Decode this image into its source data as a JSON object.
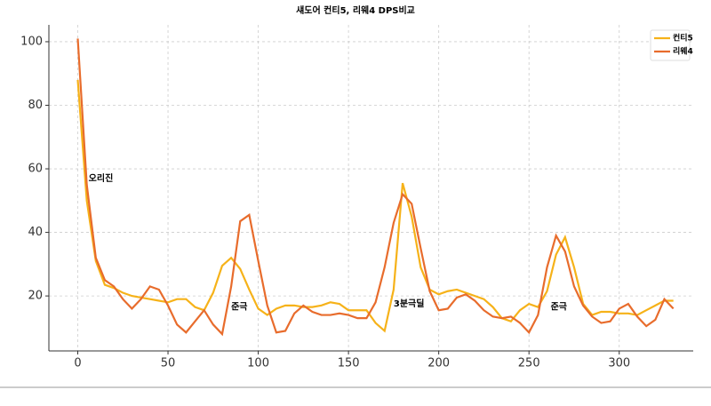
{
  "chart_data": {
    "type": "line",
    "title": "섀도어 컨티5, 리웨4 DPS비교",
    "x": [
      0,
      5,
      10,
      15,
      20,
      25,
      30,
      35,
      40,
      45,
      50,
      55,
      60,
      65,
      70,
      75,
      80,
      85,
      90,
      95,
      100,
      105,
      110,
      115,
      120,
      125,
      130,
      135,
      140,
      145,
      150,
      155,
      160,
      165,
      170,
      175,
      180,
      185,
      190,
      195,
      200,
      205,
      210,
      215,
      220,
      225,
      230,
      235,
      240,
      245,
      250,
      255,
      260,
      265,
      270,
      275,
      280,
      285,
      290,
      295,
      300,
      305,
      310,
      315,
      320,
      325,
      330
    ],
    "series": [
      {
        "name": "컨티5",
        "color": "#f6b219",
        "values": [
          88,
          50,
          31,
          23.5,
          22.5,
          21,
          20,
          19.5,
          19,
          18.5,
          18,
          19,
          19,
          16.5,
          15.5,
          21,
          29.5,
          32,
          28.5,
          22,
          16,
          14,
          16,
          17,
          17,
          16.5,
          16.5,
          17,
          18,
          17.5,
          15.5,
          15.5,
          15.5,
          11.5,
          9,
          22,
          55.5,
          45,
          29,
          22,
          20.5,
          21.5,
          22,
          21,
          20,
          19,
          16.5,
          13,
          12,
          15.5,
          17.5,
          16.5,
          21.5,
          33,
          38.5,
          29,
          17.5,
          14,
          15,
          15,
          14.5,
          14.5,
          14,
          15.5,
          17,
          18.5,
          18.5
        ]
      },
      {
        "name": "리웨4",
        "color": "#e86c2c",
        "values": [
          101,
          55,
          32,
          25,
          23,
          19,
          16,
          19,
          23,
          22,
          17,
          11,
          8.5,
          12,
          15.5,
          11,
          8,
          23,
          43.5,
          45.5,
          31,
          17,
          8.5,
          9,
          14.5,
          17,
          15,
          14,
          14,
          14.5,
          14,
          13,
          13,
          18,
          29,
          43,
          52,
          49,
          35,
          21.5,
          15.5,
          16,
          19.5,
          20.5,
          18.5,
          15.5,
          13.5,
          13,
          13.5,
          11.5,
          8.5,
          14,
          29,
          39,
          34,
          23,
          17,
          13.5,
          11.5,
          12,
          16,
          17.5,
          13.5,
          10.5,
          12.5,
          19,
          16
        ]
      }
    ],
    "annotations": [
      {
        "text": "오리진",
        "x": 6,
        "y": 57
      },
      {
        "text": "준극",
        "x": 85,
        "y": 16.5
      },
      {
        "text": "3분극딜",
        "x": 175,
        "y": 17.5
      },
      {
        "text": "준극",
        "x": 262,
        "y": 16.5
      }
    ],
    "xlim": [
      -16,
      341
    ],
    "ylim": [
      2.7,
      105.3
    ],
    "xticks": [
      0,
      50,
      100,
      150,
      200,
      250,
      300
    ],
    "yticks": [
      20,
      40,
      60,
      80,
      100
    ],
    "grid": true,
    "legend": "upper right"
  }
}
